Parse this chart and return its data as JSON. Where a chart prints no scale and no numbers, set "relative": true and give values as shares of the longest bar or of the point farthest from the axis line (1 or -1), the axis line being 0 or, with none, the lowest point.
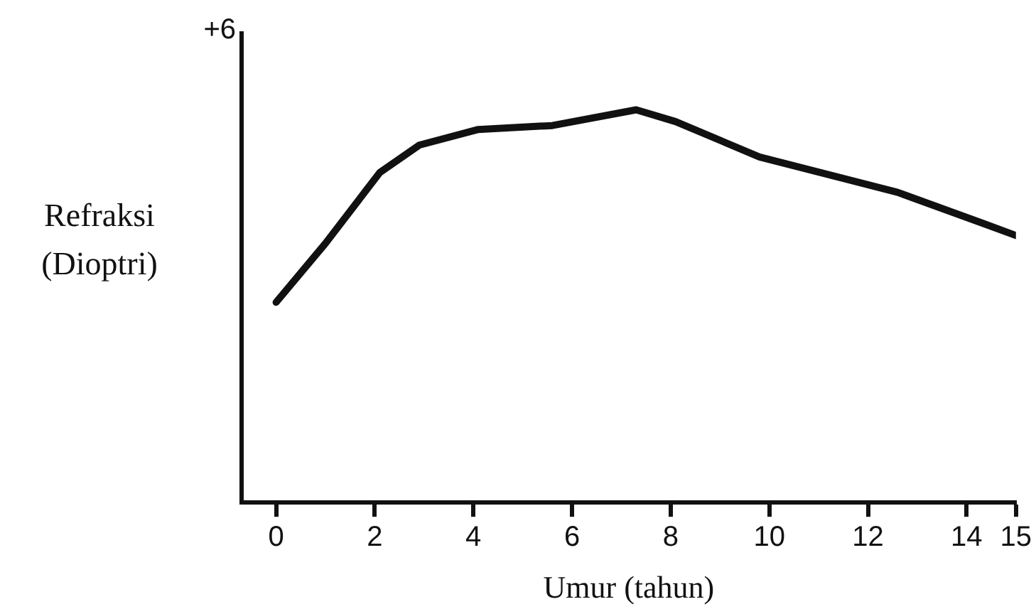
{
  "chart_data": {
    "type": "line",
    "relative": true,
    "xlabel": "Umur (tahun)",
    "ylabel": "Refraksi (Dioptri)",
    "annotations": [
      "+6"
    ],
    "xlim": [
      -0.7,
      15
    ],
    "xticks": [
      0,
      2,
      4,
      6,
      8,
      10,
      12,
      14,
      15
    ],
    "series": [
      {
        "color": "#111111",
        "x": [
          0,
          1.0,
          2.1,
          2.9,
          4.1,
          5.6,
          7.3,
          8.1,
          9.8,
          12.6,
          14.35,
          15
        ],
        "values": [
          0.51,
          0.66,
          0.84,
          0.91,
          0.95,
          0.96,
          1,
          0.97,
          0.88,
          0.79,
          0.71,
          0.68
        ]
      }
    ],
    "grid": false,
    "legend": false,
    "marker": "none",
    "line_style": "solid"
  }
}
